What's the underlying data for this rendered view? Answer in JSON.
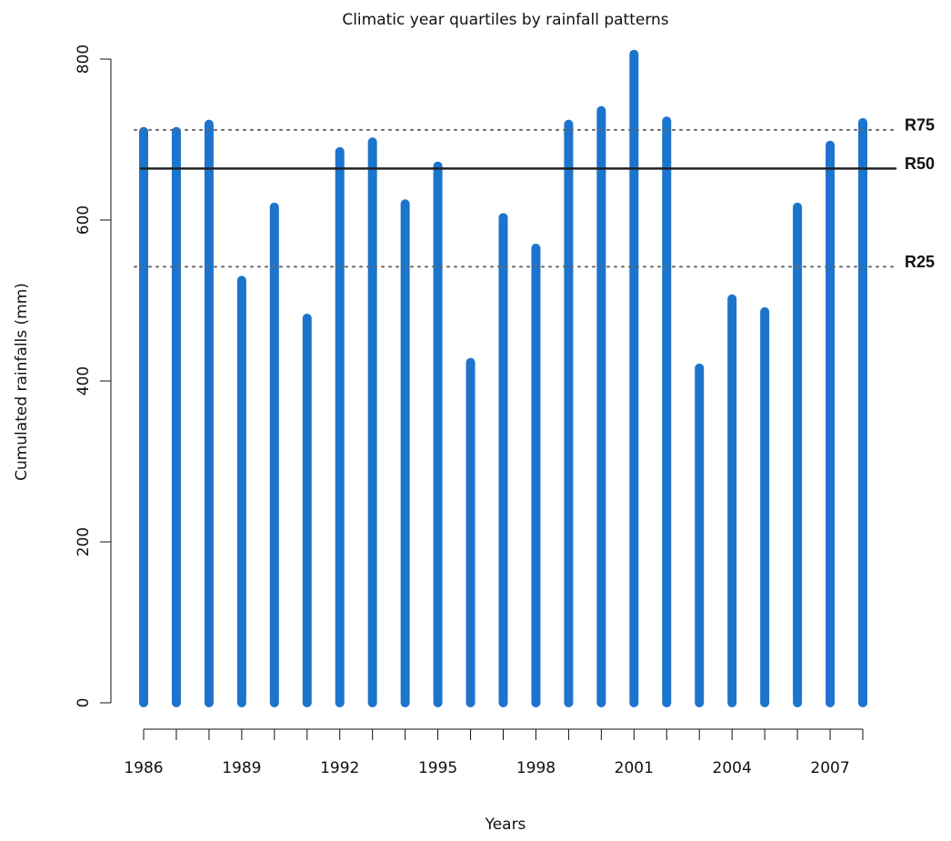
{
  "chart_data": {
    "type": "bar",
    "title": "Climatic year quartiles by rainfall patterns",
    "x_label": "Years",
    "y_label": "Cumulated rainfalls (mm)",
    "categories": [
      "1986",
      null,
      null,
      "1989",
      null,
      null,
      "1992",
      null,
      null,
      "1995",
      null,
      null,
      "1998",
      null,
      null,
      "2001",
      null,
      null,
      "2004",
      null,
      null,
      "2007",
      null
    ],
    "values": [
      710,
      710,
      719,
      525,
      616,
      478,
      685,
      697,
      620,
      667,
      423,
      603,
      565,
      719,
      736,
      806,
      723,
      416,
      502,
      486,
      616,
      693,
      721
    ],
    "color": "#1c74cc",
    "ylim": [
      0,
      800
    ],
    "yticks": [
      0,
      200,
      400,
      600,
      800
    ],
    "reference_lines": [
      {
        "label": "R75",
        "value": 712,
        "style": "dotted"
      },
      {
        "label": "R50",
        "value": 664,
        "style": "solid"
      },
      {
        "label": "R25",
        "value": 542,
        "style": "dotted"
      }
    ]
  }
}
